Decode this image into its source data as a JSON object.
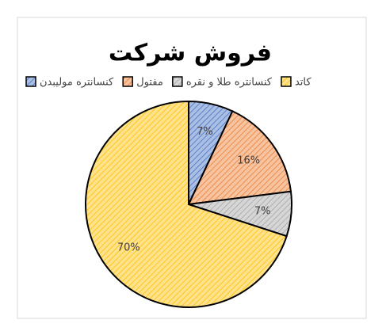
{
  "chart_data": {
    "type": "pie",
    "title": "فروش شرکت",
    "categories": [
      "کنسانتره مولیبدن",
      "مفتول",
      "کنسانتره طلا و نقره",
      "کاتد"
    ],
    "values": [
      7,
      16,
      7,
      70
    ],
    "value_labels": [
      "7%",
      "16%",
      "7%",
      "70%"
    ],
    "colors": [
      "#4472c4",
      "#ed7d31",
      "#a5a5a5",
      "#ffc000"
    ],
    "legend": "top"
  }
}
